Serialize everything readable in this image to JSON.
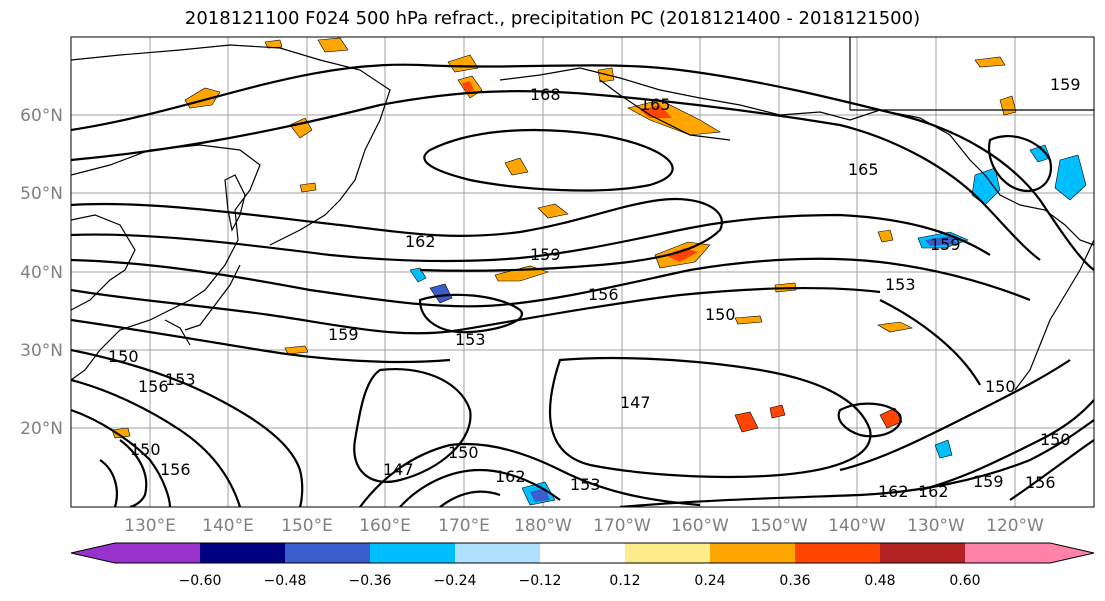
{
  "title": "2018121100 F024 500 hPa refract., precipitation PC (2018121400 - 2018121500)",
  "lat_labels": [
    "60°N",
    "50°N",
    "40°N",
    "30°N",
    "20°N"
  ],
  "lon_labels": [
    "130°E",
    "140°E",
    "150°E",
    "160°E",
    "170°E",
    "180°W",
    "170°W",
    "160°W",
    "150°W",
    "140°W",
    "130°W",
    "120°W"
  ],
  "colorbar": {
    "colors": [
      "#9932cc",
      "#000080",
      "#3a5fcd",
      "#00bfff",
      "#b0e2ff",
      "#ffffff",
      "#ffec8b",
      "#ffa500",
      "#ff4500",
      "#b22222",
      "#ff82ab"
    ],
    "labels": [
      "−0.60",
      "−0.48",
      "−0.36",
      "−0.24",
      "−0.12",
      "0.12",
      "0.24",
      "0.36",
      "0.48",
      "0.60"
    ]
  },
  "contour_labels": [
    "168",
    "165",
    "165",
    "162",
    "159",
    "156",
    "153",
    "150",
    "159",
    "153",
    "150",
    "156",
    "153",
    "147",
    "150",
    "147",
    "150",
    "162",
    "162",
    "159",
    "150",
    "162",
    "153",
    "159",
    "156",
    "159",
    "156",
    "150"
  ],
  "colors": {
    "contour": "#000000",
    "grid": "#a0a0a0",
    "coast": "#000000",
    "tick": "#808080"
  }
}
